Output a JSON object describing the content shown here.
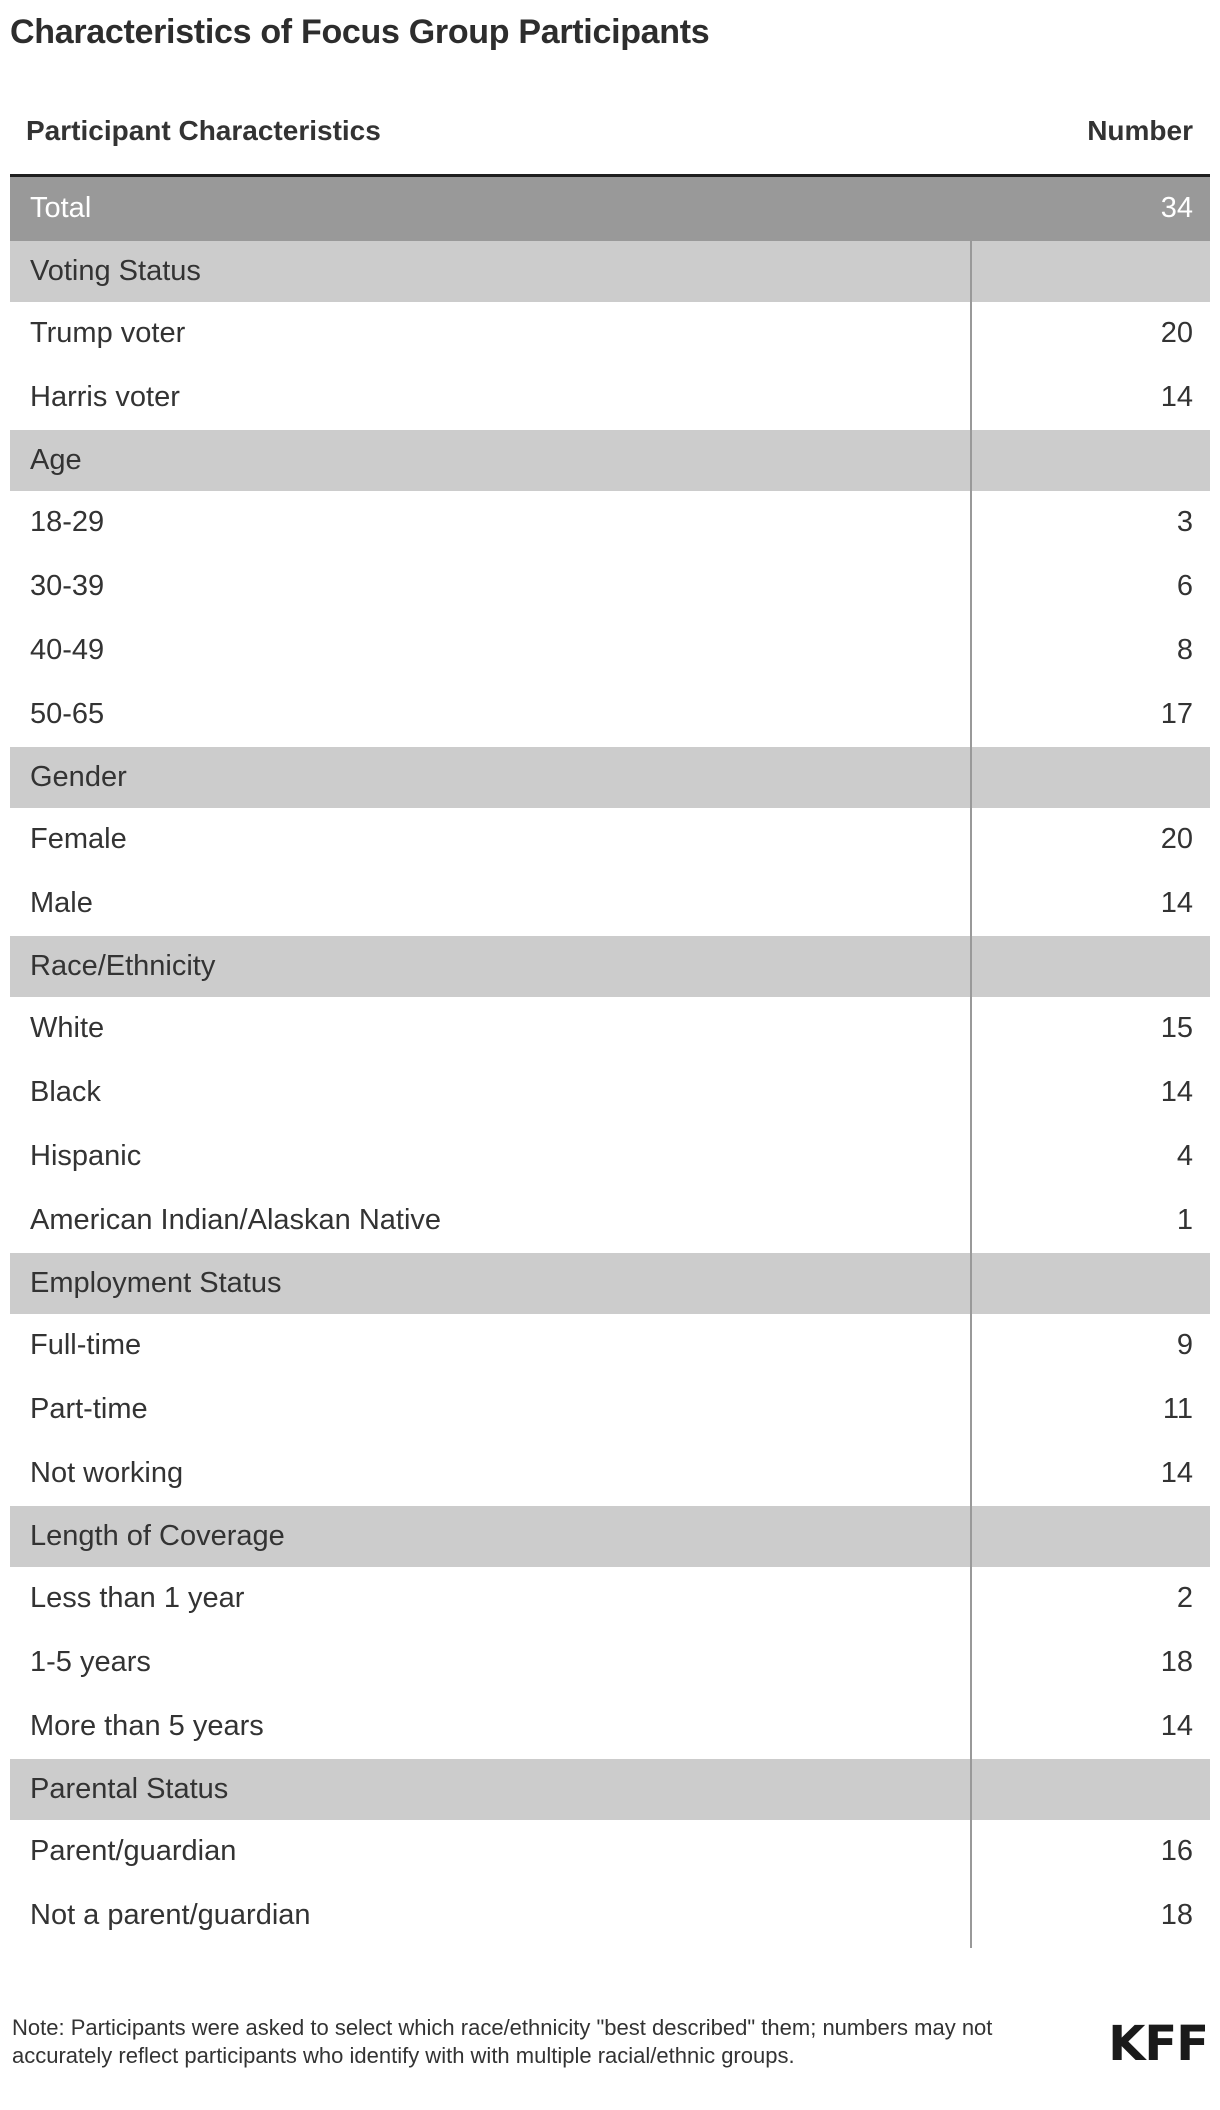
{
  "chart_data": {
    "type": "table",
    "title": "Characteristics of Focus Group Participants",
    "columns": [
      "Participant Characteristics",
      "Number"
    ],
    "total_row": {
      "label": "Total",
      "value": 34
    },
    "sections": [
      {
        "header": "Voting Status",
        "rows": [
          [
            "Trump voter",
            20
          ],
          [
            "Harris voter",
            14
          ]
        ]
      },
      {
        "header": "Age",
        "rows": [
          [
            "18-29",
            3
          ],
          [
            "30-39",
            6
          ],
          [
            "40-49",
            8
          ],
          [
            "50-65",
            17
          ]
        ]
      },
      {
        "header": "Gender",
        "rows": [
          [
            "Female",
            20
          ],
          [
            "Male",
            14
          ]
        ]
      },
      {
        "header": "Race/Ethnicity",
        "rows": [
          [
            "White",
            15
          ],
          [
            "Black",
            14
          ],
          [
            "Hispanic",
            4
          ],
          [
            "American Indian/Alaskan Native",
            1
          ]
        ]
      },
      {
        "header": "Employment Status",
        "rows": [
          [
            "Full-time",
            9
          ],
          [
            "Part-time",
            11
          ],
          [
            "Not working",
            14
          ]
        ]
      },
      {
        "header": "Length of Coverage",
        "rows": [
          [
            "Less than 1 year",
            2
          ],
          [
            "1-5 years",
            18
          ],
          [
            "More than 5 years",
            14
          ]
        ]
      },
      {
        "header": "Parental Status",
        "rows": [
          [
            "Parent/guardian",
            16
          ],
          [
            "Not a parent/guardian",
            18
          ]
        ]
      }
    ]
  },
  "footer": {
    "note": "Note: Participants were asked to select which race/ethnicity \"best described\" them; numbers may not accurately reflect participants who identify with with multiple racial/ethnic groups.",
    "logo": "KFF"
  },
  "colors": {
    "total_row_bg": "#999999",
    "section_row_bg": "#cccccc",
    "divider": "#999999",
    "top_rule": "#1f1f1f",
    "text": "#333333"
  }
}
